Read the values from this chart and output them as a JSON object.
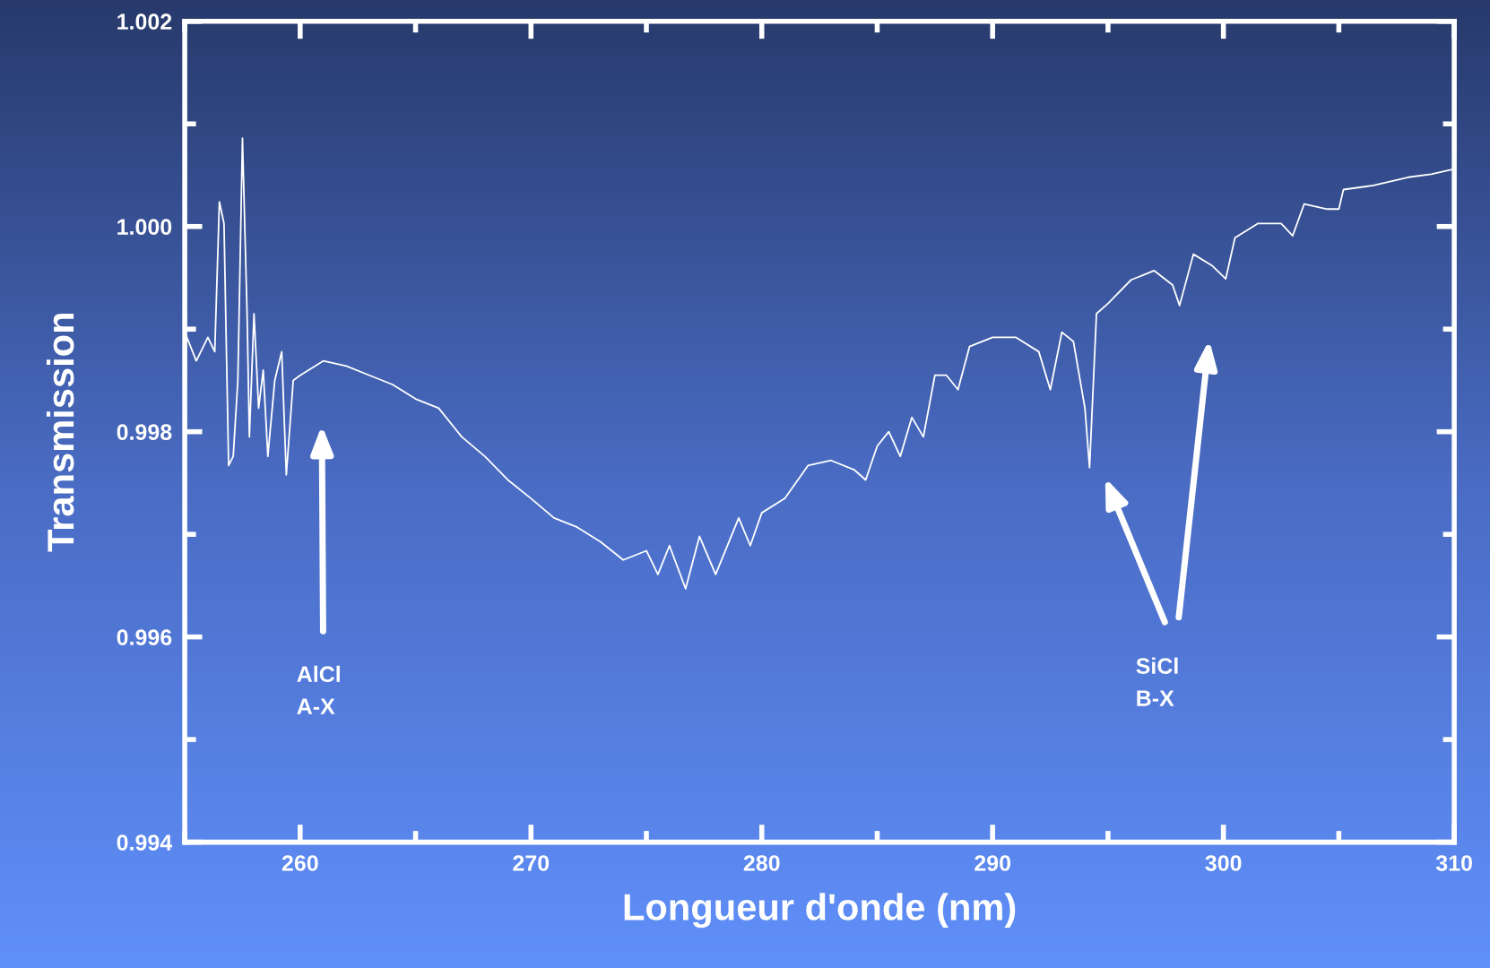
{
  "chart_data": {
    "type": "line",
    "xlabel": "Longueur d'onde (nm)",
    "ylabel": "Transmission",
    "xlim": [
      255,
      310
    ],
    "ylim": [
      0.994,
      1.002
    ],
    "xticks": [
      {
        "value": 255,
        "label": null
      },
      260,
      {
        "value": 265,
        "label": null
      },
      270,
      {
        "value": 275,
        "label": null
      },
      280,
      {
        "value": 285,
        "label": null
      },
      290,
      {
        "value": 295,
        "label": null
      },
      300,
      {
        "value": 305,
        "label": null
      },
      310
    ],
    "yticks": [
      0.994,
      {
        "value": 0.995,
        "label": null
      },
      0.996,
      {
        "value": 0.997,
        "label": null
      },
      0.998,
      {
        "value": 0.999,
        "label": null
      },
      {
        "value": 1.0,
        "label": "1.000"
      },
      {
        "value": 1.001,
        "label": null
      },
      1.002
    ],
    "grid": false,
    "marker": "none",
    "line_style": "solid",
    "x": [
      255.0,
      255.5,
      256.0,
      256.3,
      256.5,
      256.7,
      256.9,
      257.1,
      257.3,
      257.5,
      257.7,
      257.8,
      258.0,
      258.2,
      258.4,
      258.6,
      258.9,
      259.2,
      259.4,
      259.7,
      260,
      261,
      262,
      263,
      264,
      265,
      266,
      267,
      268,
      269,
      270,
      271,
      272,
      273,
      274,
      275,
      275.5,
      276,
      276.7,
      277.3,
      278,
      279,
      279.5,
      280,
      281,
      282,
      283,
      284,
      284.5,
      285,
      285.5,
      286,
      286.5,
      287,
      287.5,
      288,
      288.5,
      289,
      290,
      291,
      292,
      292.5,
      293,
      293.5,
      294,
      294.2,
      294.5,
      295,
      296,
      297,
      297.8,
      298.1,
      298.7,
      299.5,
      300.1,
      300.5,
      301.5,
      302.5,
      303.0,
      303.5,
      304.5,
      305.0,
      305.2,
      306.5,
      308,
      309,
      310
    ],
    "series": [
      {
        "color": "#ffffff",
        "values": [
          0.99897,
          0.99869,
          0.99892,
          0.99878,
          1.00024,
          1.00003,
          0.99767,
          0.99776,
          0.9985,
          1.00086,
          0.99915,
          0.99795,
          0.99915,
          0.99823,
          0.9986,
          0.99776,
          0.9985,
          0.99878,
          0.99758,
          0.9985,
          0.99855,
          0.99869,
          0.99864,
          0.99855,
          0.99846,
          0.99832,
          0.99823,
          0.99795,
          0.99776,
          0.99753,
          0.99735,
          0.99716,
          0.99707,
          0.99693,
          0.99675,
          0.99684,
          0.99661,
          0.99689,
          0.99647,
          0.99698,
          0.99661,
          0.99716,
          0.99689,
          0.99721,
          0.99735,
          0.99767,
          0.99772,
          0.99763,
          0.99753,
          0.99786,
          0.998,
          0.99776,
          0.99814,
          0.99795,
          0.99855,
          0.99855,
          0.99841,
          0.99883,
          0.99892,
          0.99892,
          0.99878,
          0.99841,
          0.99897,
          0.99888,
          0.99823,
          0.99765,
          0.99915,
          0.99925,
          0.99948,
          0.99957,
          0.99943,
          0.99923,
          0.99973,
          0.99962,
          0.99949,
          0.99989,
          1.00003,
          1.00003,
          0.99991,
          1.00022,
          1.00017,
          1.00017,
          1.00036,
          1.0004,
          1.00048,
          1.00051,
          1.00056
        ]
      }
    ],
    "annotations": [
      "AlCl\nA-X",
      "SiCl\nB-X"
    ]
  }
}
